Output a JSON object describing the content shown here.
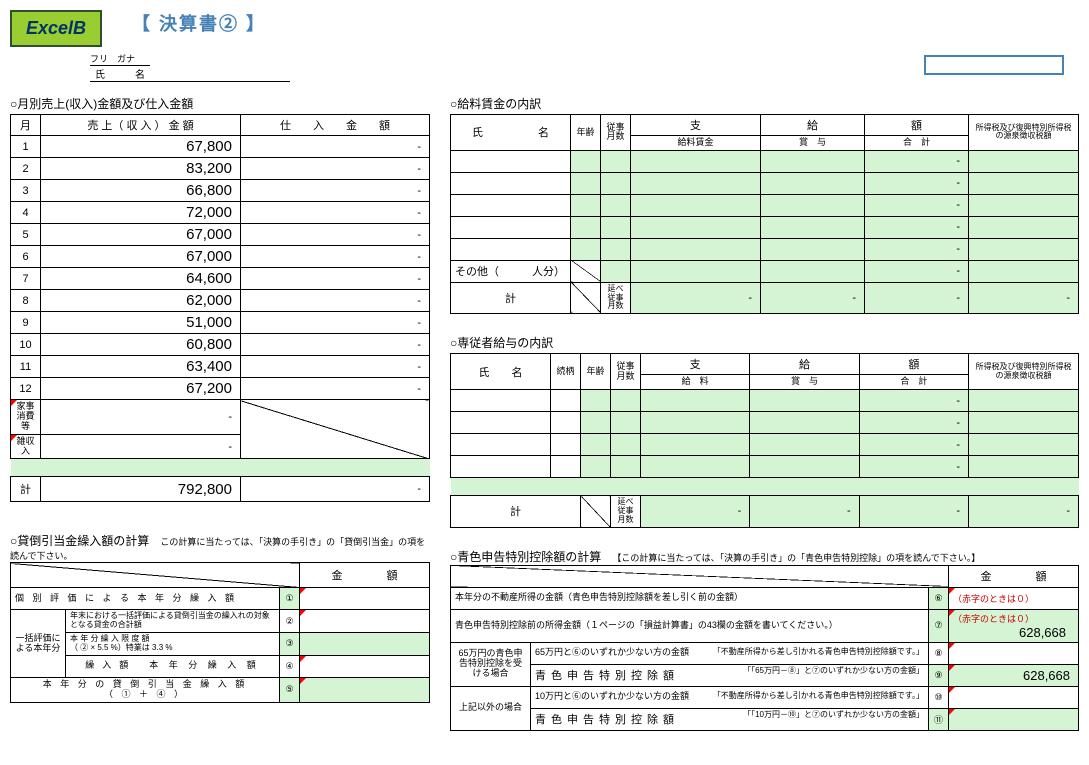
{
  "logo": "ExcelB",
  "doc_title": "【 決算書② 】",
  "furigana_label": "フリ　ガナ",
  "shimei_label": "氏　名",
  "monthly": {
    "title": "○月別売上(収入)金額及び仕入金額",
    "headers": {
      "month": "月",
      "sales": "売 上（ 収 入 ） 金 額",
      "purchase": "仕　　入　　金　　額"
    },
    "rows": [
      {
        "m": "1",
        "s": "67,800",
        "p": "-"
      },
      {
        "m": "2",
        "s": "83,200",
        "p": "-"
      },
      {
        "m": "3",
        "s": "66,800",
        "p": "-"
      },
      {
        "m": "4",
        "s": "72,000",
        "p": "-"
      },
      {
        "m": "5",
        "s": "67,000",
        "p": "-"
      },
      {
        "m": "6",
        "s": "67,000",
        "p": "-"
      },
      {
        "m": "7",
        "s": "64,600",
        "p": "-"
      },
      {
        "m": "8",
        "s": "62,000",
        "p": "-"
      },
      {
        "m": "9",
        "s": "51,000",
        "p": "-"
      },
      {
        "m": "10",
        "s": "60,800",
        "p": "-"
      },
      {
        "m": "11",
        "s": "63,400",
        "p": "-"
      },
      {
        "m": "12",
        "s": "67,200",
        "p": "-"
      }
    ],
    "kaji": {
      "label": "家事消費等",
      "s": "-"
    },
    "zatsu": {
      "label": "雑収入",
      "s": "-"
    },
    "kei": {
      "label": "計",
      "s": "792,800",
      "p": "-"
    }
  },
  "salary": {
    "title": "○給料賃金の内訳",
    "headers": {
      "name": "氏　　　　　名",
      "age": "年齢",
      "juji": "従事月数",
      "shi": "支",
      "kyu": "給",
      "gaku": "額",
      "shotoku": "所得税及び復興特別所得税の源泉徴収税額",
      "chin": "給料賃金",
      "sho": "賞　与",
      "gokei": "合　計"
    },
    "sonota": "その他（",
    "ninbun": "人分）",
    "nobe": "延べ従事月数",
    "kei": "計"
  },
  "senju": {
    "title": "○専従者給与の内訳",
    "headers": {
      "name": "氏　　名",
      "zoku": "続柄",
      "age": "年齢",
      "juji": "従事月数",
      "shi": "支",
      "kyu": "給",
      "gaku": "額",
      "shotoku": "所得税及び復興特別所得税の源泉徴収税額",
      "kyuryo": "給　料",
      "sho": "賞　与",
      "gokei": "合　計"
    },
    "nobe": "延べ従事月数",
    "kei": "計"
  },
  "kashidaore": {
    "title": "○貸倒引当金繰入額の計算",
    "inst": "この計算に当たっては、「決算の手引き」の「貸倒引当金」の項を読んで下さい。",
    "header_kingaku": "金　　　　額",
    "rows": [
      "個別評価による本年分繰入額",
      "一括評価による本年分繰入額\t年末における一括評価による貸倒引当金の繰入れの対象となる貸金の合計額",
      "本年分繰入限度額（②×5.5%）特業は3.3%",
      "本年分繰入額",
      "本年分の貸倒引当金繰入額（①＋④）"
    ],
    "kurinyu_label": "繰入額"
  },
  "aoshoku": {
    "title": "○青色申告特別控除額の計算",
    "inst": "【この計算に当たっては、「決算の手引き」の「青色申告特別控除」の項を読んで下さい。】",
    "header_kingaku": "金　　　　額",
    "akaji": "（赤字のときは０）",
    "rows": {
      "r1": "本年分の不動産所得の金額（青色申告特別控除額を差し引く前の金額）",
      "r2": "青色申告特別控除前の所得金額（１ページの「損益計算書」の43欄の金額を書いてください。）",
      "v2": "628,668",
      "r3_lbl": "65万円の青色申告特別控除を受ける場合",
      "r3a": "65万円と⑥のいずれか少ない方の金額",
      "r3a_sub": "「不動産所得から差し引かれる青色申告特別控除額です。」",
      "r3b": "青色申告特別控除額",
      "r3b_sub": "「「65万円－⑧」と⑦のいずれか少ない方の金額」",
      "v3b": "628,668",
      "r4_lbl": "上記以外の場合",
      "r4a": "10万円と⑥のいずれか少ない方の金額",
      "r4a_sub": "「不動産所得から差し引かれる青色申告特別控除額です。」",
      "r4b": "青色申告特別控除額",
      "r4b_sub": "「「10万円－⑩」と⑦のいずれか少ない方の金額」"
    }
  }
}
